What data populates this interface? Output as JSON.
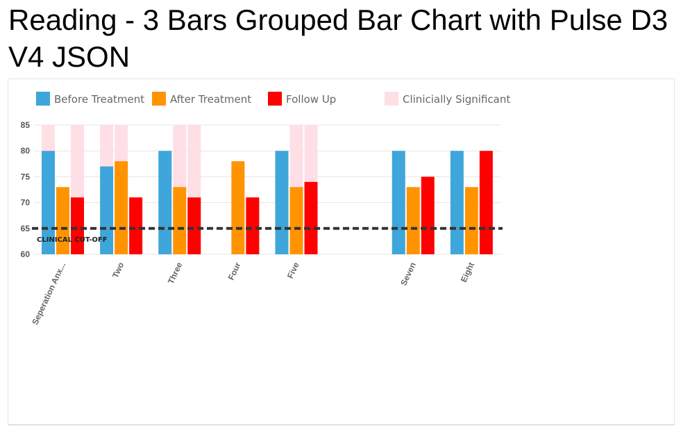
{
  "page": {
    "title": "Reading - 3 Bars Grouped Bar Chart with Pulse D3 V4 JSON"
  },
  "chart_data": {
    "type": "bar",
    "title": "",
    "xlabel": "",
    "ylabel": "",
    "ylim": [
      60,
      85
    ],
    "yticks": [
      60,
      65,
      70,
      75,
      80,
      85
    ],
    "grid": true,
    "legend_position": "top",
    "categories": [
      "Seperation Anx...",
      "Two",
      "Three",
      "Four",
      "Five",
      "",
      "Seven",
      "Eight"
    ],
    "series": [
      {
        "name": "Before Treatment",
        "color": "#3ea6da",
        "values": [
          80,
          77,
          80,
          null,
          80,
          null,
          80,
          80
        ]
      },
      {
        "name": "After Treatment",
        "color": "#ff9400",
        "values": [
          73,
          78,
          73,
          78,
          73,
          null,
          73,
          73
        ]
      },
      {
        "name": "Follow Up",
        "color": "#ff0000",
        "values": [
          71,
          71,
          71,
          71,
          74,
          null,
          75,
          80
        ]
      }
    ],
    "significance_band": {
      "name": "Clinicially Significant",
      "color": "#ffdfe6",
      "top": 85,
      "flags": [
        [
          true,
          false,
          true
        ],
        [
          true,
          true,
          false
        ],
        [
          false,
          true,
          true
        ],
        [
          false,
          false,
          false
        ],
        [
          false,
          true,
          true
        ],
        [
          false,
          false,
          false
        ],
        [
          false,
          false,
          false
        ],
        [
          false,
          false,
          false
        ]
      ]
    },
    "reference_line": {
      "label": "CLINICAL CUT-OFF",
      "value": 65,
      "color": "#333333"
    }
  }
}
